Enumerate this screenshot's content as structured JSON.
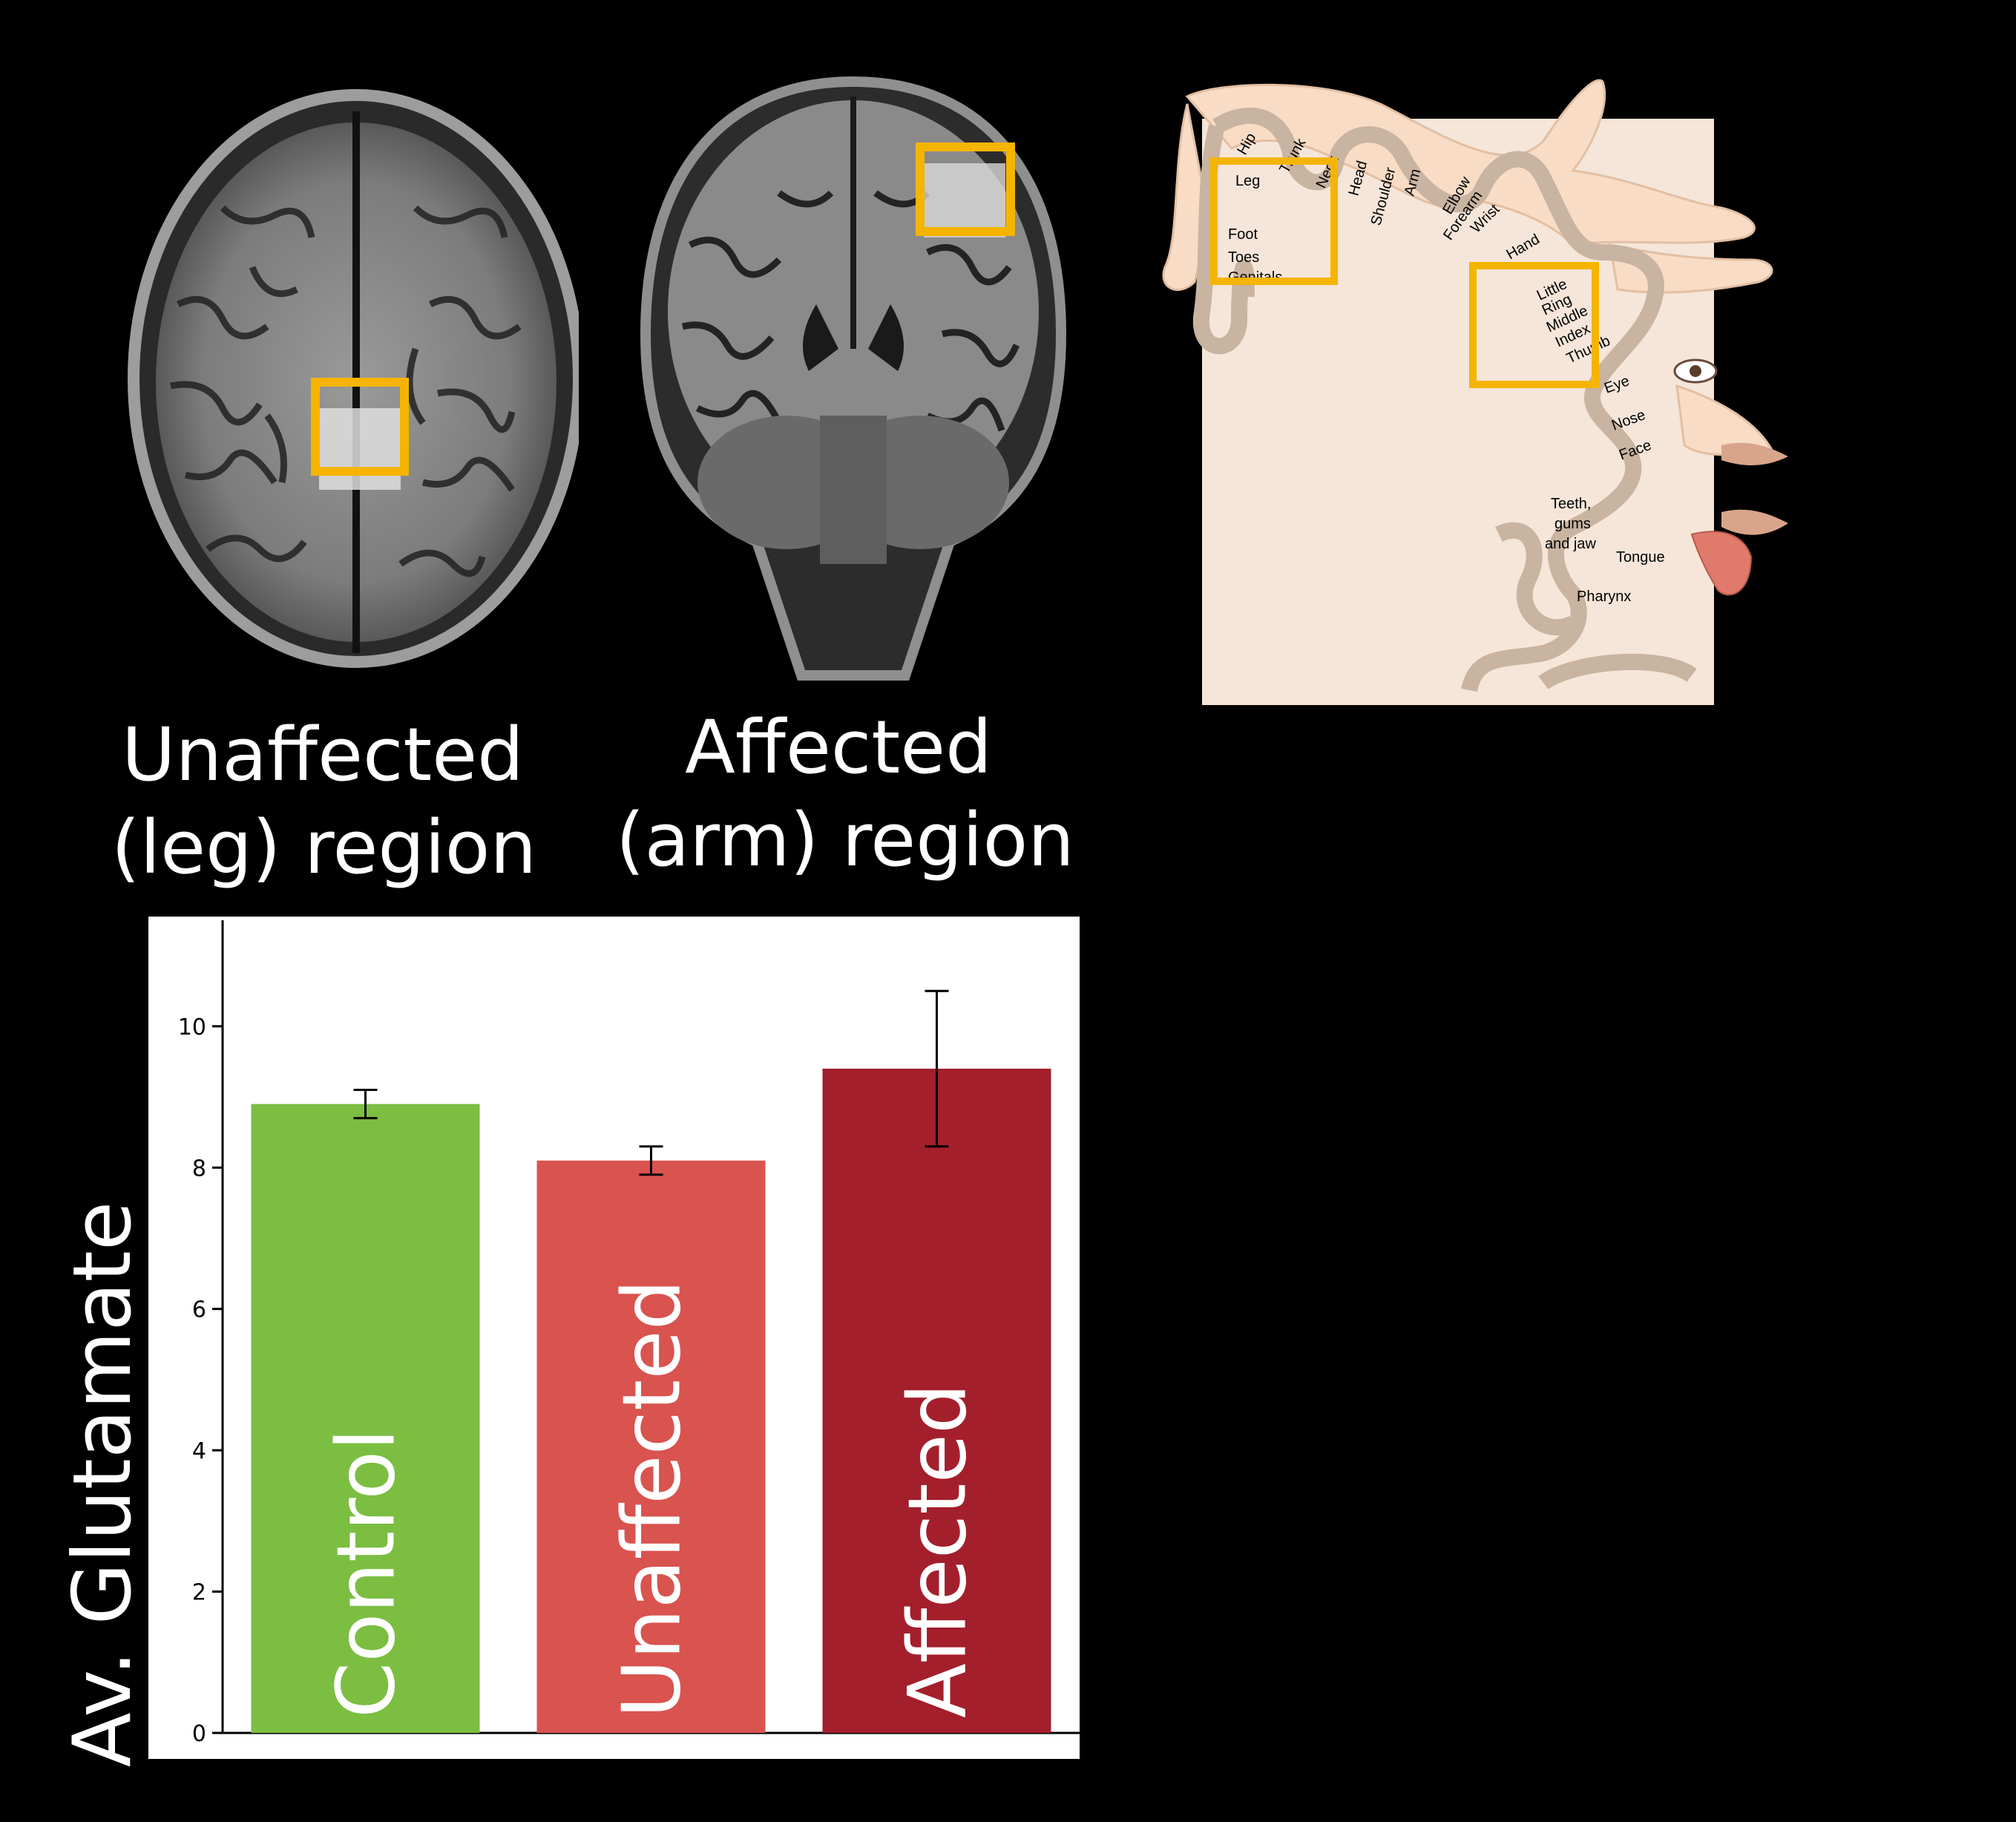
{
  "scans": {
    "axial_caption": [
      "Unaffected",
      "(leg) region"
    ],
    "coronal_caption": [
      "Affected",
      "(arm) region"
    ],
    "roi_color": "#F5B400"
  },
  "homunculus": {
    "labels": [
      "Hip",
      "Trunk",
      "Neck",
      "Head",
      "Shoulder",
      "Arm",
      "Elbow",
      "Forearm",
      "Wrist",
      "Hand",
      "Little",
      "Ring",
      "Middle",
      "Index",
      "Thumb",
      "Leg",
      "Foot",
      "Toes",
      "Genitals",
      "Eye",
      "Nose",
      "Face",
      "Teeth,",
      "gums",
      "and jaw",
      "Tongue",
      "Pharynx"
    ],
    "roi_color": "#F5B400",
    "cortex_fill": "#F5E6D9",
    "gyrus_stroke": "#C9B3A1"
  },
  "chart_data": {
    "type": "bar",
    "ylabel": "Av. Glutamate",
    "ylim": [
      0,
      11.5
    ],
    "yticks": [
      0,
      2,
      4,
      6,
      8,
      10
    ],
    "grid": false,
    "categories": [
      "Control",
      "Unaffected",
      "Affected"
    ],
    "values": [
      8.9,
      8.1,
      9.4
    ],
    "error_low": [
      8.7,
      7.9,
      8.3
    ],
    "error_high": [
      9.1,
      8.3,
      10.5
    ],
    "colors": [
      "#7BBE42",
      "#D9534F",
      "#A31F2C"
    ]
  }
}
